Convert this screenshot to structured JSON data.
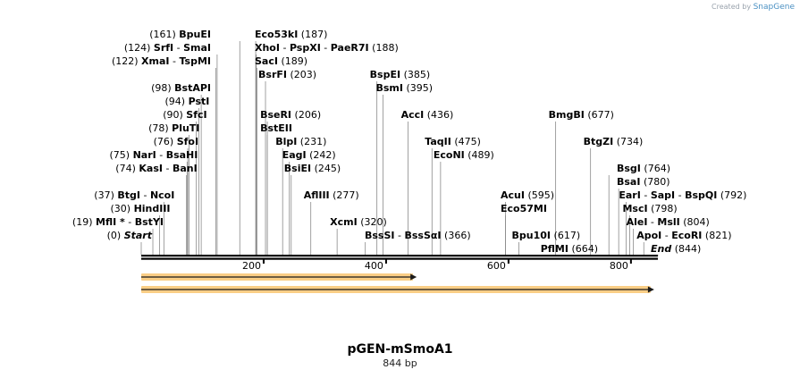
{
  "watermark": "Created by SnapGene",
  "watermark_prefix": "Created by",
  "watermark_brand": "SnapGene",
  "plasmid_name": "pGEN-mSmoA1",
  "plasmid_length": "844 bp",
  "total_bp": 844,
  "ticks": [
    {
      "bp": 200,
      "label": "200"
    },
    {
      "bp": 400,
      "label": "400"
    },
    {
      "bp": 600,
      "label": "600"
    },
    {
      "bp": 800,
      "label": "800"
    }
  ],
  "features": [
    {
      "start": 1,
      "end": 450,
      "color": "#f5a623"
    },
    {
      "start": 1,
      "end": 838,
      "color": "#f5a623"
    }
  ],
  "sites": [
    {
      "pos": "(161)",
      "bp": 161,
      "names": [
        "BpuEI"
      ],
      "row": 0,
      "col": 0
    },
    {
      "pos": "(187)",
      "bp": 187,
      "names": [
        "Eco53kI"
      ],
      "row": 0,
      "col": 1
    },
    {
      "pos": "(124)",
      "bp": 124,
      "names": [
        "SrfI",
        "SmaI"
      ],
      "row": 1,
      "col": 0
    },
    {
      "pos": "(188)",
      "bp": 188,
      "names": [
        "XhoI",
        "PspXI",
        "PaeR7I"
      ],
      "row": 1,
      "col": 1
    },
    {
      "pos": "(122)",
      "bp": 122,
      "names": [
        "XmaI",
        "TspMI"
      ],
      "row": 2,
      "col": 0
    },
    {
      "pos": "(189)",
      "bp": 189,
      "names": [
        "SacI"
      ],
      "row": 2,
      "col": 1
    },
    {
      "pos": "(203)",
      "bp": 203,
      "names": [
        "BsrFI"
      ],
      "row": 3,
      "col": 1
    },
    {
      "pos": "(98)",
      "bp": 98,
      "names": [
        "BstAPI"
      ],
      "row": 4,
      "col": 0
    },
    {
      "pos": "(94)",
      "bp": 94,
      "names": [
        "PstI"
      ],
      "row": 5,
      "col": 0
    },
    {
      "pos": "(206)",
      "bp": 206,
      "names": [
        "BseRI"
      ],
      "row": 6,
      "col": 1
    },
    {
      "pos": "(90)",
      "bp": 90,
      "names": [
        "SfcI"
      ],
      "row": 6,
      "col": 0
    },
    {
      "pos": "",
      "bp": 206,
      "names": [
        "BstEII"
      ],
      "row": 7,
      "col": 1
    },
    {
      "pos": "(78)",
      "bp": 78,
      "names": [
        "PluTI"
      ],
      "row": 7,
      "col": 0
    },
    {
      "pos": "(231)",
      "bp": 231,
      "names": [
        "BlpI"
      ],
      "row": 8,
      "col": 1
    },
    {
      "pos": "(76)",
      "bp": 76,
      "names": [
        "SfoI"
      ],
      "row": 8,
      "col": 0
    },
    {
      "pos": "(242)",
      "bp": 242,
      "names": [
        "EagI"
      ],
      "row": 9,
      "col": 1
    },
    {
      "pos": "(75)",
      "bp": 75,
      "names": [
        "NarI",
        "BsaHI"
      ],
      "row": 9,
      "col": 0
    },
    {
      "pos": "(245)",
      "bp": 245,
      "names": [
        "BsiEI"
      ],
      "row": 10,
      "col": 1
    },
    {
      "pos": "(74)",
      "bp": 74,
      "names": [
        "KasI",
        "BanI"
      ],
      "row": 10,
      "col": 0
    },
    {
      "pos": "(277)",
      "bp": 277,
      "names": [
        "AflIII"
      ],
      "row": 12,
      "col": 1
    },
    {
      "pos": "(37)",
      "bp": 37,
      "names": [
        "BtgI",
        "NcoI"
      ],
      "row": 12,
      "col": 0
    },
    {
      "pos": "(30)",
      "bp": 30,
      "names": [
        "HindIII"
      ],
      "row": 13,
      "col": 0
    },
    {
      "pos": "(320)",
      "bp": 320,
      "names": [
        "XcmI"
      ],
      "row": 14,
      "col": 1
    },
    {
      "pos": "(19)",
      "bp": 19,
      "names": [
        "MflI *",
        "BstYI"
      ],
      "row": 14,
      "col": 0
    },
    {
      "pos": "(0)",
      "bp": 0,
      "names": [
        "Start"
      ],
      "row": 15,
      "col": 0,
      "italic": true
    },
    {
      "pos": "(385)",
      "bp": 385,
      "names": [
        "BspEI"
      ],
      "row": 3,
      "col": 2
    },
    {
      "pos": "(395)",
      "bp": 395,
      "names": [
        "BsmI"
      ],
      "row": 4,
      "col": 2
    },
    {
      "pos": "(436)",
      "bp": 436,
      "names": [
        "AccI"
      ],
      "row": 6,
      "col": 2
    },
    {
      "pos": "(475)",
      "bp": 475,
      "names": [
        "TaqII"
      ],
      "row": 8,
      "col": 2
    },
    {
      "pos": "(489)",
      "bp": 489,
      "names": [
        "EcoNI"
      ],
      "row": 9,
      "col": 2
    },
    {
      "pos": "(366)",
      "bp": 366,
      "names": [
        "BssSI",
        "BssSαI"
      ],
      "row": 15,
      "col": 2
    },
    {
      "pos": "(677)",
      "bp": 677,
      "names": [
        "BmgBI"
      ],
      "row": 6,
      "col": 3
    },
    {
      "pos": "(734)",
      "bp": 734,
      "names": [
        "BtgZI"
      ],
      "row": 8,
      "col": 3
    },
    {
      "pos": "(764)",
      "bp": 764,
      "names": [
        "BsgI"
      ],
      "row": 10,
      "col": 4
    },
    {
      "pos": "(780)",
      "bp": 780,
      "names": [
        "BsaI"
      ],
      "row": 11,
      "col": 4
    },
    {
      "pos": "(792)",
      "bp": 792,
      "names": [
        "EarI",
        "SapI",
        "BspQI"
      ],
      "row": 12,
      "col": 4
    },
    {
      "pos": "(798)",
      "bp": 798,
      "names": [
        "MscI"
      ],
      "row": 13,
      "col": 4
    },
    {
      "pos": "(804)",
      "bp": 804,
      "names": [
        "AleI",
        "MslI"
      ],
      "row": 14,
      "col": 4
    },
    {
      "pos": "(821)",
      "bp": 821,
      "names": [
        "ApoI",
        "EcoRI"
      ],
      "row": 15,
      "col": 4
    },
    {
      "pos": "(844)",
      "bp": 844,
      "names": [
        "End"
      ],
      "row": 16,
      "col": 4,
      "italic": true
    },
    {
      "pos": "(595)",
      "bp": 595,
      "names": [
        "AcuI"
      ],
      "row": 12,
      "col": 3
    },
    {
      "pos": "",
      "bp": 595,
      "names": [
        "Eco57MI"
      ],
      "row": 13,
      "col": 3
    },
    {
      "pos": "(617)",
      "bp": 617,
      "names": [
        "Bpu10I"
      ],
      "row": 15,
      "col": 3
    },
    {
      "pos": "(664)",
      "bp": 664,
      "names": [
        "PflMI"
      ],
      "row": 16,
      "col": 3
    }
  ]
}
